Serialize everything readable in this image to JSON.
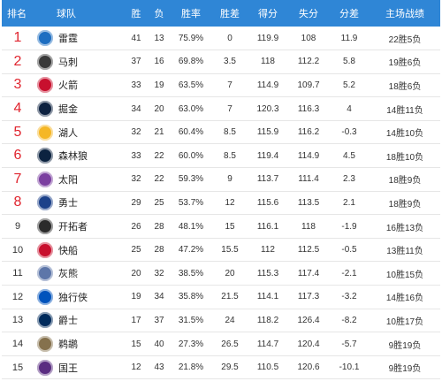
{
  "headers": [
    "排名",
    "球队",
    "胜",
    "负",
    "胜率",
    "胜差",
    "得分",
    "失分",
    "分差",
    "主场战绩"
  ],
  "rows": [
    {
      "rank": "1",
      "team": "雷霆",
      "w": "41",
      "l": "13",
      "pct": "75.9%",
      "gb": "0",
      "pf": "119.9",
      "pa": "108",
      "diff": "11.9",
      "home": "22胜5负",
      "logo_color": "#1d6ec1",
      "logo_icon": "thunder-logo-icon"
    },
    {
      "rank": "2",
      "team": "马刺",
      "w": "37",
      "l": "16",
      "pct": "69.8%",
      "gb": "3.5",
      "pf": "118",
      "pa": "112.2",
      "diff": "5.8",
      "home": "19胜6负",
      "logo_color": "#3a3a3a",
      "logo_icon": "spurs-logo-icon"
    },
    {
      "rank": "3",
      "team": "火箭",
      "w": "33",
      "l": "19",
      "pct": "63.5%",
      "gb": "7",
      "pf": "114.9",
      "pa": "109.7",
      "diff": "5.2",
      "home": "18胜6负",
      "logo_color": "#c8102e",
      "logo_icon": "rockets-logo-icon"
    },
    {
      "rank": "4",
      "team": "掘金",
      "w": "34",
      "l": "20",
      "pct": "63.0%",
      "gb": "7",
      "pf": "120.3",
      "pa": "116.3",
      "diff": "4",
      "home": "14胜11负",
      "logo_color": "#0e2240",
      "logo_icon": "nuggets-logo-icon"
    },
    {
      "rank": "5",
      "team": "湖人",
      "w": "32",
      "l": "21",
      "pct": "60.4%",
      "gb": "8.5",
      "pf": "115.9",
      "pa": "116.2",
      "diff": "-0.3",
      "home": "14胜10负",
      "logo_color": "#f5b726",
      "logo_icon": "lakers-logo-icon"
    },
    {
      "rank": "6",
      "team": "森林狼",
      "w": "33",
      "l": "22",
      "pct": "60.0%",
      "gb": "8.5",
      "pf": "119.4",
      "pa": "114.9",
      "diff": "4.5",
      "home": "18胜10负",
      "logo_color": "#0c2340",
      "logo_icon": "timberwolves-logo-icon"
    },
    {
      "rank": "7",
      "team": "太阳",
      "w": "32",
      "l": "22",
      "pct": "59.3%",
      "gb": "9",
      "pf": "113.7",
      "pa": "111.4",
      "diff": "2.3",
      "home": "18胜9负",
      "logo_color": "#7b3fa0",
      "logo_icon": "suns-logo-icon"
    },
    {
      "rank": "8",
      "team": "勇士",
      "w": "29",
      "l": "25",
      "pct": "53.7%",
      "gb": "12",
      "pf": "115.6",
      "pa": "113.5",
      "diff": "2.1",
      "home": "18胜9负",
      "logo_color": "#1d428a",
      "logo_icon": "warriors-logo-icon"
    },
    {
      "rank": "9",
      "team": "开拓者",
      "w": "26",
      "l": "28",
      "pct": "48.1%",
      "gb": "15",
      "pf": "116.1",
      "pa": "118",
      "diff": "-1.9",
      "home": "16胜13负",
      "logo_color": "#2b2b2b",
      "logo_icon": "blazers-logo-icon"
    },
    {
      "rank": "10",
      "team": "快船",
      "w": "25",
      "l": "28",
      "pct": "47.2%",
      "gb": "15.5",
      "pf": "112",
      "pa": "112.5",
      "diff": "-0.5",
      "home": "13胜11负",
      "logo_color": "#c8102e",
      "logo_icon": "clippers-logo-icon"
    },
    {
      "rank": "11",
      "team": "灰熊",
      "w": "20",
      "l": "32",
      "pct": "38.5%",
      "gb": "20",
      "pf": "115.3",
      "pa": "117.4",
      "diff": "-2.1",
      "home": "10胜15负",
      "logo_color": "#5d76a9",
      "logo_icon": "grizzlies-logo-icon"
    },
    {
      "rank": "12",
      "team": "独行侠",
      "w": "19",
      "l": "34",
      "pct": "35.8%",
      "gb": "21.5",
      "pf": "114.1",
      "pa": "117.3",
      "diff": "-3.2",
      "home": "14胜16负",
      "logo_color": "#0053bc",
      "logo_icon": "mavericks-logo-icon"
    },
    {
      "rank": "13",
      "team": "爵士",
      "w": "17",
      "l": "37",
      "pct": "31.5%",
      "gb": "24",
      "pf": "118.2",
      "pa": "126.4",
      "diff": "-8.2",
      "home": "10胜17负",
      "logo_color": "#002b5c",
      "logo_icon": "jazz-logo-icon"
    },
    {
      "rank": "14",
      "team": "鹈鹕",
      "w": "15",
      "l": "40",
      "pct": "27.3%",
      "gb": "26.5",
      "pf": "114.7",
      "pa": "120.4",
      "diff": "-5.7",
      "home": "9胜19负",
      "logo_color": "#85714d",
      "logo_icon": "pelicans-logo-icon"
    },
    {
      "rank": "15",
      "team": "国王",
      "w": "12",
      "l": "43",
      "pct": "21.8%",
      "gb": "29.5",
      "pf": "110.5",
      "pa": "120.6",
      "diff": "-10.1",
      "home": "9胜19负",
      "logo_color": "#5a2d81",
      "logo_icon": "kings-logo-icon"
    }
  ],
  "colors": {
    "header_bg": "#2f86d6",
    "top_rank": "#e0242e"
  }
}
